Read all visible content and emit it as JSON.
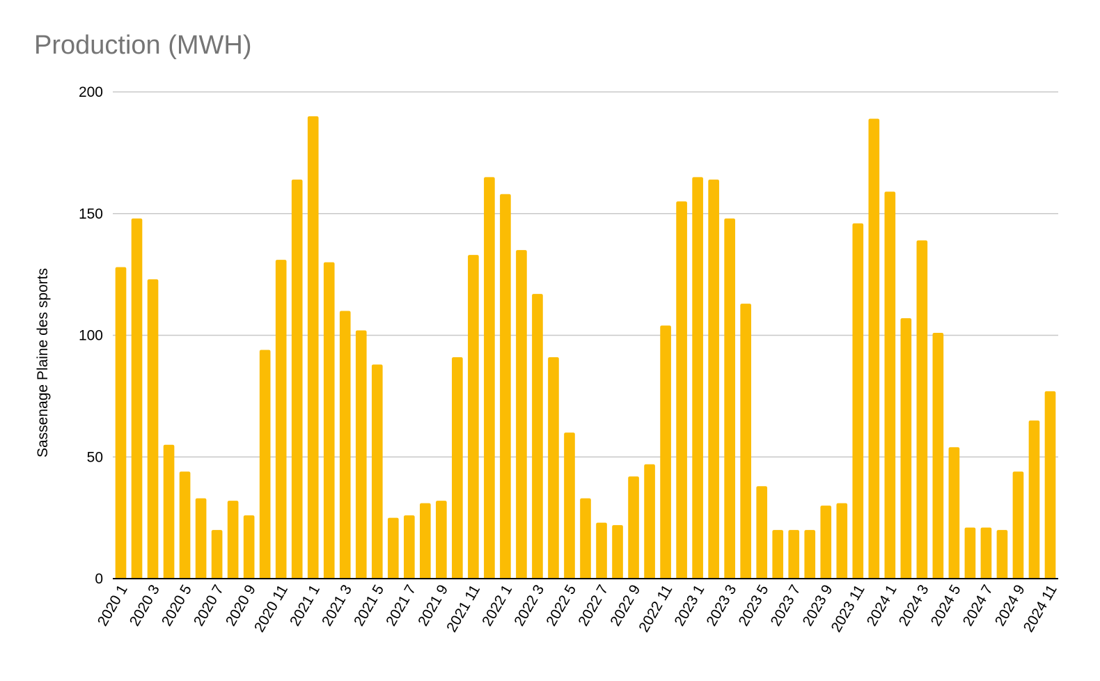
{
  "colors": {
    "bar": "#FBBC04",
    "grid": "#C8C8C8",
    "baseline": "#000000",
    "title": "#757575"
  },
  "chart_data": {
    "type": "bar",
    "title": "Production (MWH)",
    "xlabel": "",
    "ylabel": "Sassenage Plaine des sports",
    "ylim": [
      0,
      200
    ],
    "yticks": [
      0,
      50,
      100,
      150,
      200
    ],
    "grid": true,
    "legend": "none",
    "categories": [
      "2020 1",
      "2020 2",
      "2020 3",
      "2020 4",
      "2020 5",
      "2020 6",
      "2020 7",
      "2020 8",
      "2020 9",
      "2020 10",
      "2020 11",
      "2020 12",
      "2021 1",
      "2021 2",
      "2021 3",
      "2021 4",
      "2021 5",
      "2021 6",
      "2021 7",
      "2021 8",
      "2021 9",
      "2021 10",
      "2021 11",
      "2021 12",
      "2022 1",
      "2022 2",
      "2022 3",
      "2022 4",
      "2022 5",
      "2022 6",
      "2022 7",
      "2022 8",
      "2022 9",
      "2022 10",
      "2022 11",
      "2022 12",
      "2023 1",
      "2023 2",
      "2023 3",
      "2023 4",
      "2023 5",
      "2023 6",
      "2023 7",
      "2023 8",
      "2023 9",
      "2023 10",
      "2023 11",
      "2023 12",
      "2024 1",
      "2024 2",
      "2024 3",
      "2024 4",
      "2024 5",
      "2024 6",
      "2024 7",
      "2024 8",
      "2024 9",
      "2024 10",
      "2024 11"
    ],
    "visible_category_labels": [
      "2020 1",
      "2020 3",
      "2020 5",
      "2020 7",
      "2020 9",
      "2020 11",
      "2021 1",
      "2021 3",
      "2021 5",
      "2021 7",
      "2021 9",
      "2021 11",
      "2022 1",
      "2022 3",
      "2022 5",
      "2022 7",
      "2022 9",
      "2022 11",
      "2023 1",
      "2023 3",
      "2023 5",
      "2023 7",
      "2023 9",
      "2023 11",
      "2024 1",
      "2024 3",
      "2024 5",
      "2024 7",
      "2024 9",
      "2024 11"
    ],
    "values": [
      128,
      148,
      123,
      55,
      44,
      33,
      20,
      32,
      26,
      94,
      131,
      164,
      190,
      130,
      110,
      102,
      88,
      25,
      26,
      31,
      32,
      91,
      133,
      165,
      158,
      135,
      117,
      91,
      60,
      33,
      23,
      22,
      42,
      47,
      104,
      155,
      165,
      164,
      148,
      113,
      38,
      20,
      20,
      20,
      30,
      31,
      146,
      189,
      159,
      107,
      139,
      101,
      54,
      21,
      21,
      20,
      44,
      65,
      77
    ]
  }
}
